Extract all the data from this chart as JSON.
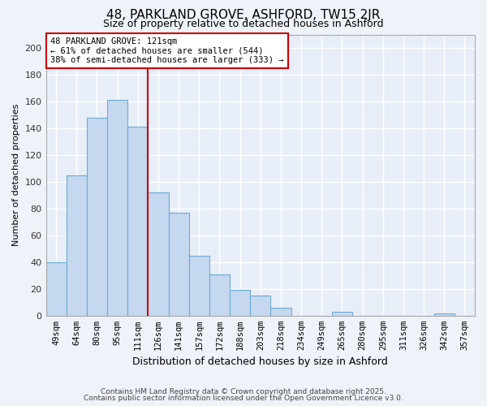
{
  "title": "48, PARKLAND GROVE, ASHFORD, TW15 2JR",
  "subtitle": "Size of property relative to detached houses in Ashford",
  "xlabel": "Distribution of detached houses by size in Ashford",
  "ylabel": "Number of detached properties",
  "bin_labels": [
    "49sqm",
    "64sqm",
    "80sqm",
    "95sqm",
    "111sqm",
    "126sqm",
    "141sqm",
    "157sqm",
    "172sqm",
    "188sqm",
    "203sqm",
    "218sqm",
    "234sqm",
    "249sqm",
    "265sqm",
    "280sqm",
    "295sqm",
    "311sqm",
    "326sqm",
    "342sqm",
    "357sqm"
  ],
  "bar_values": [
    40,
    105,
    148,
    161,
    141,
    92,
    77,
    45,
    31,
    19,
    15,
    6,
    0,
    0,
    3,
    0,
    0,
    0,
    0,
    2,
    0
  ],
  "bar_color": "#c5d8f0",
  "bar_edge_color": "#6aaad4",
  "vline_color": "#cc0000",
  "annotation_text": "48 PARKLAND GROVE: 121sqm\n← 61% of detached houses are smaller (544)\n38% of semi-detached houses are larger (333) →",
  "ylim": [
    0,
    210
  ],
  "yticks": [
    0,
    20,
    40,
    60,
    80,
    100,
    120,
    140,
    160,
    180,
    200
  ],
  "footer_line1": "Contains HM Land Registry data © Crown copyright and database right 2025.",
  "footer_line2": "Contains public sector information licensed under the Open Government Licence v3.0.",
  "bg_color": "#eef2f9",
  "grid_color": "#ffffff",
  "plot_bg_color": "#e8eef8"
}
